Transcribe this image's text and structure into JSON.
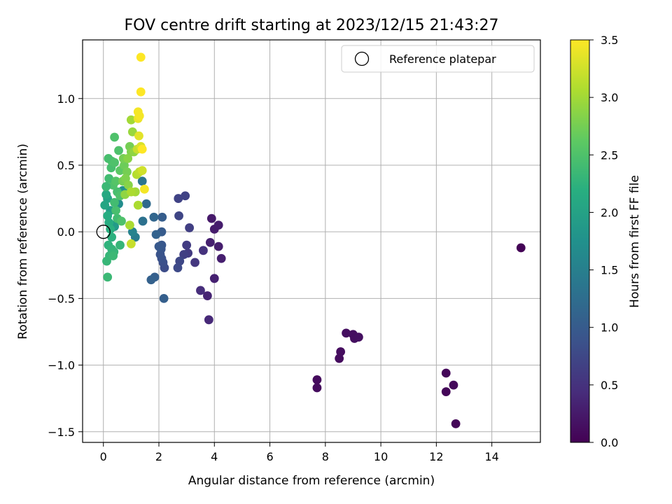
{
  "chart_data": {
    "type": "scatter",
    "title": "FOV centre drift starting at 2023/12/15 21:43:27",
    "xlabel": "Angular distance from reference (arcmin)",
    "ylabel": "Rotation from reference (arcmin)",
    "xlim": [
      -0.75,
      15.75
    ],
    "ylim": [
      -1.58,
      1.44
    ],
    "xticks": [
      0,
      2,
      4,
      6,
      8,
      10,
      12,
      14
    ],
    "xtick_labels": [
      "0",
      "2",
      "4",
      "6",
      "8",
      "10",
      "12",
      "14"
    ],
    "yticks": [
      -1.5,
      -1.0,
      -0.5,
      0.0,
      0.5,
      1.0
    ],
    "ytick_labels": [
      "−1.5",
      "−1.0",
      "−0.5",
      "0.0",
      "0.5",
      "1.0"
    ],
    "grid": true,
    "legend": {
      "position": "top-right",
      "label": "Reference platepar"
    },
    "reference_point": {
      "x": 0,
      "y": 0
    },
    "colorbar": {
      "label": "Hours from first FF file",
      "colormap": "viridis",
      "range": [
        0.0,
        3.5
      ],
      "ticks": [
        0.0,
        0.5,
        1.0,
        1.5,
        2.0,
        2.5,
        3.0,
        3.5
      ],
      "tick_labels": [
        "0.0",
        "0.5",
        "1.0",
        "1.5",
        "2.0",
        "2.5",
        "3.0",
        "3.5"
      ]
    },
    "points": [
      {
        "x": 15.05,
        "y": -0.12,
        "c": 0.02
      },
      {
        "x": 12.7,
        "y": -1.44,
        "c": 0.05
      },
      {
        "x": 12.35,
        "y": -1.2,
        "c": 0.05
      },
      {
        "x": 12.35,
        "y": -1.06,
        "c": 0.06
      },
      {
        "x": 12.62,
        "y": -1.15,
        "c": 0.07
      },
      {
        "x": 7.7,
        "y": -1.17,
        "c": 0.1
      },
      {
        "x": 7.7,
        "y": -1.11,
        "c": 0.1
      },
      {
        "x": 8.5,
        "y": -0.95,
        "c": 0.11
      },
      {
        "x": 8.55,
        "y": -0.9,
        "c": 0.12
      },
      {
        "x": 8.75,
        "y": -0.76,
        "c": 0.13
      },
      {
        "x": 9.0,
        "y": -0.77,
        "c": 0.14
      },
      {
        "x": 9.05,
        "y": -0.8,
        "c": 0.14
      },
      {
        "x": 9.2,
        "y": -0.79,
        "c": 0.15
      },
      {
        "x": 3.9,
        "y": 0.1,
        "c": 0.25
      },
      {
        "x": 4.0,
        "y": 0.02,
        "c": 0.27
      },
      {
        "x": 4.15,
        "y": 0.05,
        "c": 0.28
      },
      {
        "x": 4.15,
        "y": -0.11,
        "c": 0.29
      },
      {
        "x": 4.25,
        "y": -0.2,
        "c": 0.3
      },
      {
        "x": 3.85,
        "y": -0.08,
        "c": 0.31
      },
      {
        "x": 4.0,
        "y": -0.35,
        "c": 0.32
      },
      {
        "x": 3.75,
        "y": -0.48,
        "c": 0.35
      },
      {
        "x": 3.8,
        "y": -0.66,
        "c": 0.4
      },
      {
        "x": 3.5,
        "y": -0.44,
        "c": 0.45
      },
      {
        "x": 3.6,
        "y": -0.14,
        "c": 0.5
      },
      {
        "x": 3.3,
        "y": -0.23,
        "c": 0.55
      },
      {
        "x": 3.05,
        "y": -0.16,
        "c": 0.6
      },
      {
        "x": 3.0,
        "y": -0.1,
        "c": 0.62
      },
      {
        "x": 2.9,
        "y": -0.17,
        "c": 0.65
      },
      {
        "x": 3.1,
        "y": 0.03,
        "c": 0.65
      },
      {
        "x": 2.95,
        "y": 0.27,
        "c": 0.68
      },
      {
        "x": 2.7,
        "y": 0.25,
        "c": 0.7
      },
      {
        "x": 2.72,
        "y": 0.12,
        "c": 0.72
      },
      {
        "x": 2.75,
        "y": -0.22,
        "c": 0.75
      },
      {
        "x": 2.68,
        "y": -0.27,
        "c": 0.78
      },
      {
        "x": 2.2,
        "y": -0.27,
        "c": 0.82
      },
      {
        "x": 2.15,
        "y": -0.23,
        "c": 0.85
      },
      {
        "x": 2.1,
        "y": -0.2,
        "c": 0.88
      },
      {
        "x": 2.05,
        "y": -0.17,
        "c": 0.9
      },
      {
        "x": 2.08,
        "y": -0.13,
        "c": 0.92
      },
      {
        "x": 2.1,
        "y": -0.1,
        "c": 0.95
      },
      {
        "x": 2.0,
        "y": -0.11,
        "c": 0.97
      },
      {
        "x": 2.1,
        "y": 0.0,
        "c": 1.0
      },
      {
        "x": 2.12,
        "y": 0.11,
        "c": 1.02
      },
      {
        "x": 2.18,
        "y": -0.5,
        "c": 1.05
      },
      {
        "x": 1.85,
        "y": -0.34,
        "c": 1.05
      },
      {
        "x": 1.72,
        "y": -0.36,
        "c": 1.08
      },
      {
        "x": 1.9,
        "y": -0.02,
        "c": 1.1
      },
      {
        "x": 1.82,
        "y": 0.11,
        "c": 1.15
      },
      {
        "x": 1.55,
        "y": 0.21,
        "c": 1.2
      },
      {
        "x": 1.42,
        "y": 0.08,
        "c": 1.3
      },
      {
        "x": 1.4,
        "y": 0.38,
        "c": 1.35
      },
      {
        "x": 1.15,
        "y": -0.04,
        "c": 1.45
      },
      {
        "x": 1.05,
        "y": 0.0,
        "c": 1.55
      },
      {
        "x": 0.55,
        "y": 0.21,
        "c": 1.7
      },
      {
        "x": 0.7,
        "y": 0.31,
        "c": 1.75
      },
      {
        "x": 0.4,
        "y": 0.04,
        "c": 1.85
      },
      {
        "x": 0.35,
        "y": 0.05,
        "c": 1.9
      },
      {
        "x": 0.25,
        "y": 0.16,
        "c": 1.95
      },
      {
        "x": 0.15,
        "y": 0.25,
        "c": 2.0
      },
      {
        "x": 0.05,
        "y": 0.2,
        "c": 2.05
      },
      {
        "x": 0.1,
        "y": 0.28,
        "c": 2.1
      },
      {
        "x": 0.15,
        "y": 0.12,
        "c": 2.15
      },
      {
        "x": 0.2,
        "y": 0.07,
        "c": 2.15
      },
      {
        "x": 0.25,
        "y": 0.02,
        "c": 2.2
      },
      {
        "x": 0.3,
        "y": -0.04,
        "c": 2.22
      },
      {
        "x": 0.18,
        "y": -0.1,
        "c": 2.25
      },
      {
        "x": 0.3,
        "y": -0.13,
        "c": 2.28
      },
      {
        "x": 0.38,
        "y": -0.15,
        "c": 2.3
      },
      {
        "x": 0.22,
        "y": -0.18,
        "c": 2.3
      },
      {
        "x": 0.12,
        "y": -0.22,
        "c": 2.32
      },
      {
        "x": 0.15,
        "y": -0.34,
        "c": 2.35
      },
      {
        "x": 0.35,
        "y": -0.18,
        "c": 2.35
      },
      {
        "x": 0.6,
        "y": -0.1,
        "c": 2.3
      },
      {
        "x": 0.5,
        "y": 0.1,
        "c": 2.4
      },
      {
        "x": 0.65,
        "y": 0.08,
        "c": 2.5
      },
      {
        "x": 0.45,
        "y": 0.16,
        "c": 2.45
      },
      {
        "x": 0.4,
        "y": 0.22,
        "c": 2.4
      },
      {
        "x": 0.5,
        "y": 0.3,
        "c": 2.45
      },
      {
        "x": 0.6,
        "y": 0.27,
        "c": 2.5
      },
      {
        "x": 0.35,
        "y": 0.35,
        "c": 2.5
      },
      {
        "x": 0.2,
        "y": 0.4,
        "c": 2.4
      },
      {
        "x": 0.45,
        "y": 0.38,
        "c": 2.55
      },
      {
        "x": 0.28,
        "y": 0.48,
        "c": 2.45
      },
      {
        "x": 0.3,
        "y": 0.53,
        "c": 2.5
      },
      {
        "x": 0.18,
        "y": 0.55,
        "c": 2.45
      },
      {
        "x": 0.4,
        "y": 0.52,
        "c": 2.5
      },
      {
        "x": 0.55,
        "y": 0.61,
        "c": 2.5
      },
      {
        "x": 0.4,
        "y": 0.71,
        "c": 2.5
      },
      {
        "x": 0.1,
        "y": 0.34,
        "c": 2.35
      },
      {
        "x": 0.6,
        "y": 0.46,
        "c": 2.6
      },
      {
        "x": 0.75,
        "y": 0.5,
        "c": 2.7
      },
      {
        "x": 0.85,
        "y": 0.45,
        "c": 2.75
      },
      {
        "x": 0.7,
        "y": 0.38,
        "c": 2.75
      },
      {
        "x": 0.8,
        "y": 0.4,
        "c": 2.8
      },
      {
        "x": 0.9,
        "y": 0.35,
        "c": 2.85
      },
      {
        "x": 0.78,
        "y": 0.28,
        "c": 2.9
      },
      {
        "x": 0.72,
        "y": 0.55,
        "c": 2.75
      },
      {
        "x": 0.95,
        "y": 0.64,
        "c": 2.75
      },
      {
        "x": 1.0,
        "y": 0.6,
        "c": 2.8
      },
      {
        "x": 0.88,
        "y": 0.55,
        "c": 2.85
      },
      {
        "x": 1.05,
        "y": 0.75,
        "c": 2.95
      },
      {
        "x": 1.0,
        "y": 0.84,
        "c": 3.0
      },
      {
        "x": 1.1,
        "y": 0.6,
        "c": 2.9
      },
      {
        "x": 1.15,
        "y": 0.3,
        "c": 3.0
      },
      {
        "x": 1.25,
        "y": 0.2,
        "c": 3.05
      },
      {
        "x": 1.0,
        "y": 0.3,
        "c": 3.05
      },
      {
        "x": 0.95,
        "y": 0.05,
        "c": 3.05
      },
      {
        "x": 1.0,
        "y": -0.09,
        "c": 3.2
      },
      {
        "x": 1.2,
        "y": 0.43,
        "c": 3.1
      },
      {
        "x": 1.3,
        "y": 0.45,
        "c": 3.15
      },
      {
        "x": 1.4,
        "y": 0.46,
        "c": 3.25
      },
      {
        "x": 1.22,
        "y": 0.62,
        "c": 3.2
      },
      {
        "x": 1.35,
        "y": 0.64,
        "c": 3.3
      },
      {
        "x": 1.28,
        "y": 0.72,
        "c": 3.35
      },
      {
        "x": 1.25,
        "y": 0.85,
        "c": 3.4
      },
      {
        "x": 1.3,
        "y": 0.87,
        "c": 3.45
      },
      {
        "x": 1.25,
        "y": 0.9,
        "c": 3.45
      },
      {
        "x": 1.35,
        "y": 1.05,
        "c": 3.5
      },
      {
        "x": 1.35,
        "y": 1.31,
        "c": 3.5
      },
      {
        "x": 1.48,
        "y": 0.32,
        "c": 3.45
      },
      {
        "x": 1.4,
        "y": 0.62,
        "c": 3.5
      }
    ]
  }
}
